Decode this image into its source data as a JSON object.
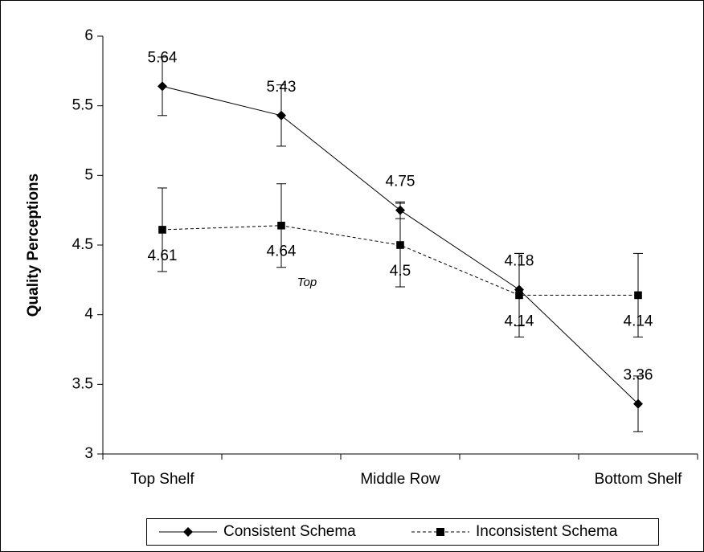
{
  "chart_data": {
    "type": "line",
    "y_label": "Quality Perceptions",
    "categories": [
      "Top Shelf",
      null,
      "Middle Row",
      null,
      "Bottom Shelf"
    ],
    "series": [
      {
        "name": "Consistent Schema",
        "color": "#000000",
        "marker": "diamond",
        "line_style": "solid",
        "values": [
          5.64,
          5.43,
          4.75,
          4.18,
          3.36
        ],
        "errors": [
          0.21,
          0.22,
          0.06,
          0.26,
          0.2
        ]
      },
      {
        "name": "Inconsistent Schema",
        "color": "#000000",
        "marker": "square",
        "line_style": "dashed",
        "values": [
          4.61,
          4.64,
          4.5,
          4.14,
          4.14
        ],
        "errors": [
          0.3,
          0.3,
          0.3,
          0.3,
          0.3
        ]
      }
    ],
    "annotation": "Top",
    "ylim": [
      3,
      6
    ],
    "yticks": [
      3,
      3.5,
      4,
      4.5,
      5,
      5.5,
      6
    ],
    "grid": false
  }
}
